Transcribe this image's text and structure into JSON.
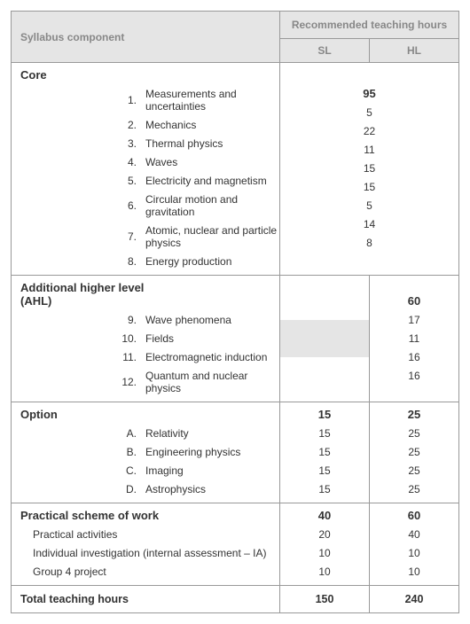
{
  "header": {
    "component": "Syllabus component",
    "recommended": "Recommended teaching hours",
    "sl": "SL",
    "hl": "HL"
  },
  "sections": [
    {
      "title": "Core",
      "sl_total": "",
      "hl_total": "",
      "merged_total": "95",
      "merged": true,
      "grey_sl": false,
      "items": [
        {
          "idx": "1.",
          "label": "Measurements and uncertainties",
          "merged": true,
          "val": "5"
        },
        {
          "idx": "2.",
          "label": "Mechanics",
          "merged": true,
          "val": "22"
        },
        {
          "idx": "3.",
          "label": "Thermal physics",
          "merged": true,
          "val": "11"
        },
        {
          "idx": "4.",
          "label": "Waves",
          "merged": true,
          "val": "15"
        },
        {
          "idx": "5.",
          "label": "Electricity and magnetism",
          "merged": true,
          "val": "15"
        },
        {
          "idx": "6.",
          "label": "Circular motion and gravitation",
          "merged": true,
          "val": "5"
        },
        {
          "idx": "7.",
          "label": "Atomic, nuclear and particle physics",
          "merged": true,
          "val": "14"
        },
        {
          "idx": "8.",
          "label": "Energy production",
          "merged": true,
          "val": "8"
        }
      ]
    },
    {
      "title": "Additional higher level (AHL)",
      "sl_total": "",
      "hl_total": "60",
      "merged": false,
      "grey_sl": true,
      "items": [
        {
          "idx": "9.",
          "label": "Wave phenomena",
          "merged": false,
          "sl": "",
          "hl": "17",
          "grey_sl": true
        },
        {
          "idx": "10.",
          "label": "Fields",
          "merged": false,
          "sl": "",
          "hl": "11",
          "grey_sl": true
        },
        {
          "idx": "11.",
          "label": "Electromagnetic induction",
          "merged": false,
          "sl": "",
          "hl": "16",
          "grey_sl": true
        },
        {
          "idx": "12.",
          "label": "Quantum and nuclear physics",
          "merged": false,
          "sl": "",
          "hl": "16",
          "grey_sl": true
        }
      ]
    },
    {
      "title": "Option",
      "sl_total": "15",
      "hl_total": "25",
      "merged": false,
      "grey_sl": false,
      "items": [
        {
          "idx": "A.",
          "label": "Relativity",
          "merged": false,
          "sl": "15",
          "hl": "25"
        },
        {
          "idx": "B.",
          "label": "Engineering physics",
          "merged": false,
          "sl": "15",
          "hl": "25"
        },
        {
          "idx": "C.",
          "label": "Imaging",
          "merged": false,
          "sl": "15",
          "hl": "25"
        },
        {
          "idx": "D.",
          "label": "Astrophysics",
          "merged": false,
          "sl": "15",
          "hl": "25"
        }
      ]
    },
    {
      "title": "Practical scheme of work",
      "sl_total": "40",
      "hl_total": "60",
      "merged": false,
      "grey_sl": false,
      "no_idx": true,
      "items": [
        {
          "label": "Practical activities",
          "merged": false,
          "sl": "20",
          "hl": "40"
        },
        {
          "label": "Individual investigation (internal assessment – IA)",
          "merged": false,
          "sl": "10",
          "hl": "10"
        },
        {
          "label": "Group 4 project",
          "merged": false,
          "sl": "10",
          "hl": "10"
        }
      ]
    }
  ],
  "total": {
    "label": "Total teaching hours",
    "sl": "150",
    "hl": "240"
  },
  "styling": {
    "header_bg": "#e5e5e5",
    "header_fg": "#888888",
    "border_color": "#999999",
    "text_color": "#333333",
    "font_size_body": 12,
    "font_size_title": 13
  }
}
